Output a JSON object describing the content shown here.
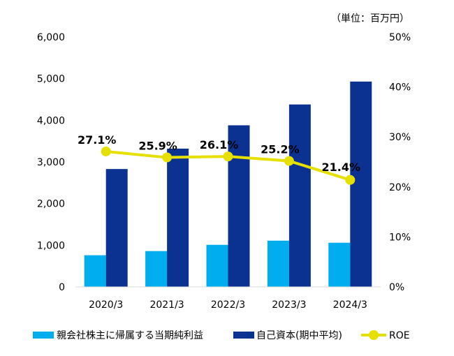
{
  "chart_data": {
    "type": "bar",
    "unit_note": "（単位：百万円）",
    "categories": [
      "2020/3",
      "2021/3",
      "2022/3",
      "2023/3",
      "2024/3"
    ],
    "series": [
      {
        "name": "親会社株主に帰属する当期純利益",
        "kind": "bar",
        "axis": "left",
        "color": "#00AEEF",
        "values": [
          760,
          860,
          1010,
          1110,
          1060
        ]
      },
      {
        "name": "自己資本(期中平均)",
        "kind": "bar",
        "axis": "left",
        "color": "#0C3291",
        "values": [
          2830,
          3320,
          3880,
          4380,
          4930
        ]
      },
      {
        "name": "ROE",
        "kind": "line",
        "axis": "right",
        "color": "#E6E000",
        "values": [
          27.1,
          25.9,
          26.1,
          25.2,
          21.4
        ],
        "labels": [
          "27.1%",
          "25.9%",
          "26.1%",
          "25.2%",
          "21.4%"
        ]
      }
    ],
    "y_left": {
      "min": 0,
      "max": 6000,
      "ticks": [
        "0",
        "1,000",
        "2,000",
        "3,000",
        "4,000",
        "5,000",
        "6,000"
      ],
      "tick_values": [
        0,
        1000,
        2000,
        3000,
        4000,
        5000,
        6000
      ]
    },
    "y_right": {
      "min": 0,
      "max": 50,
      "ticks": [
        "0%",
        "10%",
        "20%",
        "30%",
        "40%",
        "50%"
      ],
      "tick_values": [
        0,
        10,
        20,
        30,
        40,
        50
      ]
    },
    "legend_position": "bottom"
  }
}
